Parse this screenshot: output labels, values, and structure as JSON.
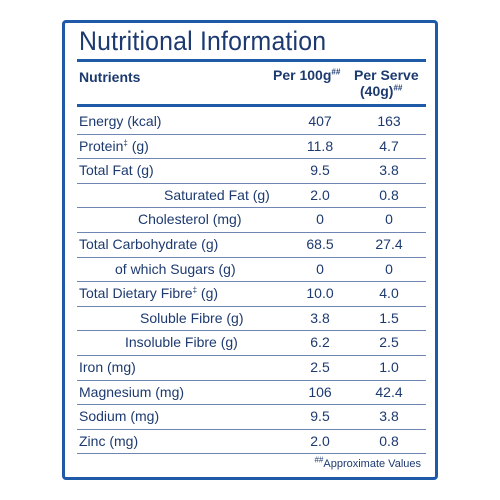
{
  "title": "Nutritional Information",
  "header": {
    "nutrients": "Nutrients",
    "per100_main": "Per 100g",
    "per100_sup": "##",
    "perserve_line1": "Per Serve",
    "perserve_line2": "(40g)",
    "perserve_sup": "##"
  },
  "rows": [
    {
      "name": "Energy (kcal)",
      "per100": "407",
      "perserve": "163"
    },
    {
      "name": "Protein",
      "sup": "‡",
      "unit": " (g)",
      "per100": "11.8",
      "perserve": "4.7"
    },
    {
      "name": "Total Fat (g)",
      "per100": "9.5",
      "perserve": "3.8"
    },
    {
      "name": "Saturated Fat (g)",
      "per100": "2.0",
      "perserve": "0.8"
    },
    {
      "name": "Cholesterol (mg)",
      "per100": "0",
      "perserve": "0"
    },
    {
      "name": "Total Carbohydrate (g)",
      "per100": "68.5",
      "perserve": "27.4"
    },
    {
      "name": "of which Sugars (g)",
      "per100": "0",
      "perserve": "0"
    },
    {
      "name": "Total Dietary Fibre",
      "sup": "‡",
      "unit": " (g)",
      "per100": "10.0",
      "perserve": "4.0"
    },
    {
      "name": "Soluble Fibre (g)",
      "per100": "3.8",
      "perserve": "1.5"
    },
    {
      "name": "Insoluble Fibre (g)",
      "per100": "6.2",
      "perserve": "2.5"
    },
    {
      "name": "Iron (mg)",
      "per100": "2.5",
      "perserve": "1.0"
    },
    {
      "name": "Magnesium (mg)",
      "per100": "106",
      "perserve": "42.4"
    },
    {
      "name": "Sodium (mg)",
      "per100": "9.5",
      "perserve": "3.8"
    },
    {
      "name": "Zinc (mg)",
      "per100": "2.0",
      "perserve": "0.8"
    }
  ],
  "footnote": {
    "sup": "##",
    "text": "Approximate Values"
  },
  "colors": {
    "border": "#1e5aa8",
    "text": "#1d3a70"
  }
}
